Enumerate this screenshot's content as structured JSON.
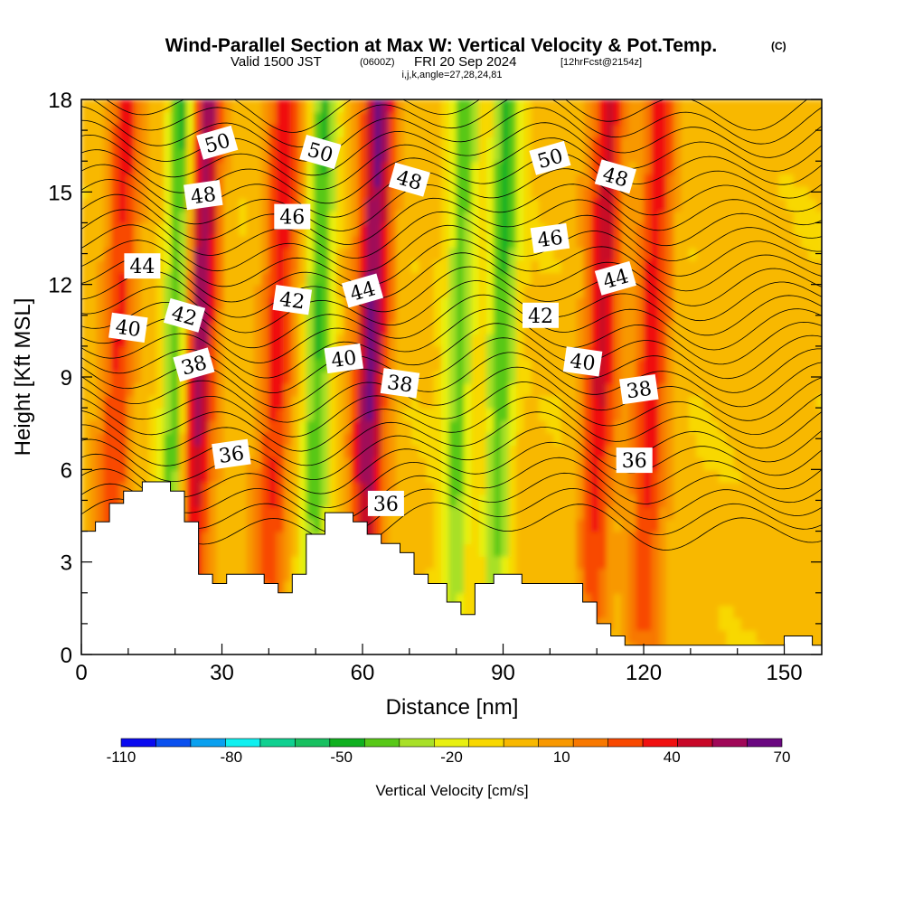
{
  "header": {
    "title": "Wind-Parallel Section at Max W: Vertical Velocity & Pot.Temp.",
    "copyright": "(C)",
    "valid_prefix": "Valid 1500 JST",
    "valid_utc": "(0600Z)",
    "valid_date": "FRI 20 Sep 2024",
    "forecast_info": "[12hrFcst@2154z]",
    "indices": "i,j,k,angle=27,28,24,81"
  },
  "chart_data": {
    "type": "heatmap",
    "xlabel": "Distance [nm]",
    "ylabel": "Height [Kft MSL]",
    "xlim": [
      0,
      158
    ],
    "ylim": [
      0,
      18
    ],
    "x_ticks": [
      0,
      30,
      60,
      90,
      120,
      150
    ],
    "y_ticks": [
      0,
      3,
      6,
      9,
      12,
      15,
      18
    ],
    "colorbar": {
      "title": "Vertical Velocity [cm/s]",
      "range": [
        -110,
        70
      ],
      "step": 10,
      "tick_labels": [
        "-110",
        "-80",
        "-50",
        "-20",
        "10",
        "40",
        "70"
      ],
      "colors": [
        "#0a0aef",
        "#0a50ef",
        "#0aa0ef",
        "#10f0f0",
        "#10d090",
        "#18c060",
        "#10b020",
        "#58c818",
        "#a8e028",
        "#e8f010",
        "#f8d800",
        "#f8b800",
        "#f89800",
        "#f87800",
        "#f84800",
        "#f01010",
        "#c80828",
        "#a00858",
        "#6a0880"
      ]
    },
    "updraft_bands": [
      {
        "x_center": 7,
        "w_max": 40
      },
      {
        "x_center": 24,
        "w_max": 70
      },
      {
        "x_center": 41,
        "w_max": 45
      },
      {
        "x_center": 61,
        "w_max": 70
      },
      {
        "x_center": 110,
        "w_max": 50
      },
      {
        "x_center": 121,
        "w_max": 45
      }
    ],
    "downdraft_bands": [
      {
        "x_center": 20,
        "w_min": -55
      },
      {
        "x_center": 50,
        "w_min": -45
      },
      {
        "x_center": 80,
        "w_min": -40
      },
      {
        "x_center": 89,
        "w_min": -45
      }
    ],
    "theta_contour_labels": [
      {
        "text": "50",
        "x": 29,
        "y": 16.6
      },
      {
        "text": "48",
        "x": 26,
        "y": 14.9
      },
      {
        "text": "44",
        "x": 13,
        "y": 12.6
      },
      {
        "text": "40",
        "x": 10,
        "y": 10.6
      },
      {
        "text": "42",
        "x": 22,
        "y": 11.0
      },
      {
        "text": "38",
        "x": 24,
        "y": 9.4
      },
      {
        "text": "36",
        "x": 32,
        "y": 6.5
      },
      {
        "text": "46",
        "x": 45,
        "y": 14.2
      },
      {
        "text": "42",
        "x": 45,
        "y": 11.5
      },
      {
        "text": "50",
        "x": 51,
        "y": 16.3
      },
      {
        "text": "44",
        "x": 60,
        "y": 11.8
      },
      {
        "text": "40",
        "x": 56,
        "y": 9.6
      },
      {
        "text": "36",
        "x": 65,
        "y": 4.9
      },
      {
        "text": "38",
        "x": 68,
        "y": 8.8
      },
      {
        "text": "48",
        "x": 70,
        "y": 15.4
      },
      {
        "text": "50",
        "x": 100,
        "y": 16.1
      },
      {
        "text": "46",
        "x": 100,
        "y": 13.5
      },
      {
        "text": "42",
        "x": 98,
        "y": 11.0
      },
      {
        "text": "40",
        "x": 107,
        "y": 9.5
      },
      {
        "text": "48",
        "x": 114,
        "y": 15.5
      },
      {
        "text": "44",
        "x": 114,
        "y": 12.2
      },
      {
        "text": "38",
        "x": 119,
        "y": 8.6
      },
      {
        "text": "36",
        "x": 118,
        "y": 6.3
      }
    ],
    "terrain_kft": [
      [
        0,
        4.0
      ],
      [
        3,
        4.0
      ],
      [
        3,
        4.3
      ],
      [
        6,
        4.3
      ],
      [
        6,
        4.9
      ],
      [
        9,
        4.9
      ],
      [
        9,
        5.3
      ],
      [
        13,
        5.3
      ],
      [
        13,
        5.6
      ],
      [
        19,
        5.6
      ],
      [
        19,
        5.3
      ],
      [
        22,
        5.3
      ],
      [
        22,
        4.3
      ],
      [
        25,
        4.3
      ],
      [
        25,
        2.6
      ],
      [
        28,
        2.6
      ],
      [
        28,
        2.3
      ],
      [
        31,
        2.3
      ],
      [
        31,
        2.6
      ],
      [
        39,
        2.6
      ],
      [
        39,
        2.3
      ],
      [
        42,
        2.3
      ],
      [
        42,
        2.0
      ],
      [
        45,
        2.0
      ],
      [
        45,
        2.6
      ],
      [
        48,
        2.6
      ],
      [
        48,
        3.9
      ],
      [
        52,
        3.9
      ],
      [
        52,
        4.6
      ],
      [
        58,
        4.6
      ],
      [
        58,
        4.3
      ],
      [
        61,
        4.3
      ],
      [
        61,
        3.9
      ],
      [
        64,
        3.9
      ],
      [
        64,
        3.6
      ],
      [
        68,
        3.6
      ],
      [
        68,
        3.3
      ],
      [
        71,
        3.3
      ],
      [
        71,
        2.6
      ],
      [
        74,
        2.6
      ],
      [
        74,
        2.3
      ],
      [
        78,
        2.3
      ],
      [
        78,
        1.7
      ],
      [
        81,
        1.7
      ],
      [
        81,
        1.3
      ],
      [
        84,
        1.3
      ],
      [
        84,
        2.3
      ],
      [
        88,
        2.3
      ],
      [
        88,
        2.6
      ],
      [
        94,
        2.6
      ],
      [
        94,
        2.3
      ],
      [
        107,
        2.3
      ],
      [
        107,
        1.7
      ],
      [
        110,
        1.7
      ],
      [
        110,
        1.0
      ],
      [
        113,
        1.0
      ],
      [
        113,
        0.6
      ],
      [
        116,
        0.6
      ],
      [
        116,
        0.3
      ],
      [
        150,
        0.3
      ],
      [
        150,
        0.6
      ],
      [
        156,
        0.6
      ],
      [
        156,
        0.3
      ],
      [
        158,
        0.3
      ]
    ]
  }
}
